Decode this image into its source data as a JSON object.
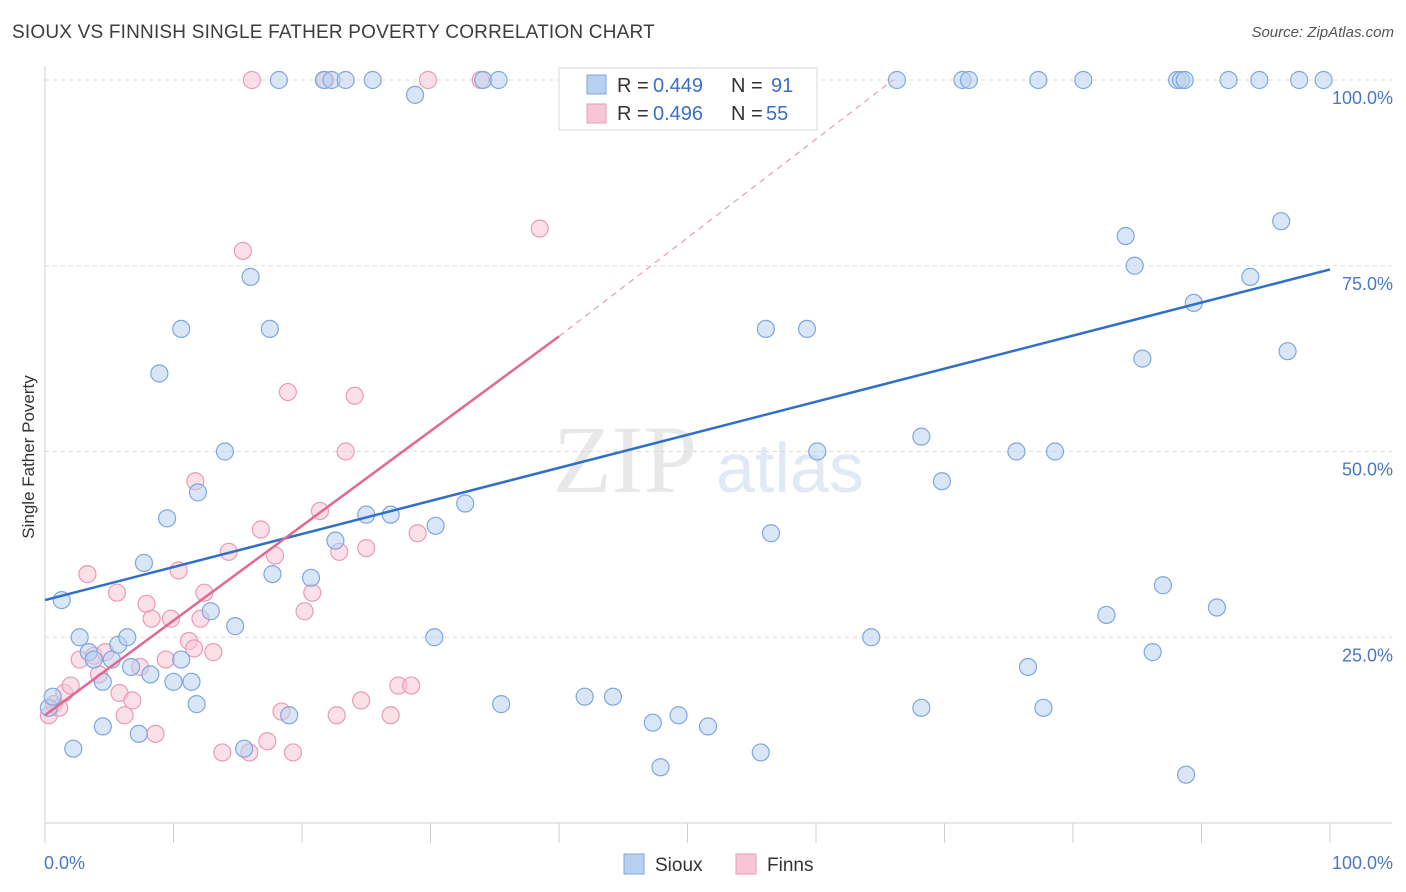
{
  "header": {
    "title": "SIOUX VS FINNISH SINGLE FATHER POVERTY CORRELATION CHART",
    "source": "Source: ZipAtlas.com"
  },
  "watermark": {
    "zip": "ZIP",
    "atlas": "atlas"
  },
  "legend": {
    "sioux": {
      "r_label": "R =",
      "r_value": "0.449",
      "n_label": "N =",
      "n_value": "91"
    },
    "finns": {
      "r_label": "R =",
      "r_value": "0.496",
      "n_label": "N =",
      "n_value": "55"
    }
  },
  "bottom_legend": {
    "sioux": "Sioux",
    "finns": "Finns"
  },
  "colors": {
    "sioux_fill": "#b9d1f0",
    "sioux_stroke": "#7fa7de",
    "sioux_line": "#2f6fc7",
    "finns_fill": "#f7c6d6",
    "finns_stroke": "#e99bb6",
    "finns_line": "#e2688f",
    "grid": "#dcdcdc",
    "axis_text": "#4a78c2"
  },
  "chart_data": {
    "type": "scatter",
    "title": "SIOUX VS FINNISH SINGLE FATHER POVERTY CORRELATION CHART",
    "xlabel": "",
    "ylabel": "Single Father Poverty",
    "xlim": [
      0,
      100
    ],
    "ylim": [
      0,
      100
    ],
    "x_tick_labels": [
      "0.0%",
      "100.0%"
    ],
    "y_tick_labels": [
      "25.0%",
      "50.0%",
      "75.0%",
      "100.0%"
    ],
    "y_ticks": [
      25,
      50,
      75,
      100
    ],
    "grid": true,
    "legend_position": "top-center",
    "series": [
      {
        "name": "Sioux",
        "R": 0.449,
        "N": 91,
        "trend": {
          "x0": 0,
          "y0": 30,
          "x1": 100,
          "y1": 74.5
        },
        "points": [
          [
            0.3,
            15.5
          ],
          [
            0.6,
            17
          ],
          [
            1.3,
            30
          ],
          [
            2.2,
            10
          ],
          [
            2.7,
            25
          ],
          [
            3.4,
            23
          ],
          [
            3.8,
            22
          ],
          [
            4.5,
            13
          ],
          [
            4.5,
            19
          ],
          [
            5.2,
            22
          ],
          [
            5.7,
            24
          ],
          [
            6.4,
            25
          ],
          [
            6.7,
            21
          ],
          [
            7.3,
            12
          ],
          [
            7.7,
            35
          ],
          [
            8.2,
            20
          ],
          [
            8.9,
            60.5
          ],
          [
            9.5,
            41
          ],
          [
            10,
            19
          ],
          [
            10.6,
            66.5
          ],
          [
            10.6,
            22
          ],
          [
            11.4,
            19
          ],
          [
            11.8,
            16
          ],
          [
            11.9,
            44.5
          ],
          [
            12.9,
            28.5
          ],
          [
            14.0,
            50
          ],
          [
            14.8,
            26.5
          ],
          [
            15.5,
            10
          ],
          [
            16.0,
            73.5
          ],
          [
            17.5,
            66.5
          ],
          [
            17.7,
            33.5
          ],
          [
            18.2,
            100
          ],
          [
            19,
            14.5
          ],
          [
            20.7,
            33
          ],
          [
            21.7,
            100
          ],
          [
            22.3,
            100
          ],
          [
            22.6,
            38
          ],
          [
            23.4,
            100
          ],
          [
            25,
            41.5
          ],
          [
            25.5,
            100
          ],
          [
            26.9,
            41.5
          ],
          [
            28.8,
            98
          ],
          [
            30.4,
            40
          ],
          [
            32.7,
            43
          ],
          [
            34.1,
            100
          ],
          [
            35.3,
            100
          ],
          [
            35.5,
            16
          ],
          [
            42,
            17
          ],
          [
            44.2,
            17
          ],
          [
            47.3,
            13.5
          ],
          [
            47.9,
            7.5
          ],
          [
            49.3,
            14.5
          ],
          [
            56.1,
            66.5
          ],
          [
            55.7,
            9.5
          ],
          [
            56.5,
            39
          ],
          [
            59.3,
            66.5
          ],
          [
            60.1,
            50
          ],
          [
            64.3,
            25
          ],
          [
            66.3,
            100
          ],
          [
            68.2,
            15.5
          ],
          [
            68.2,
            52
          ],
          [
            69.8,
            46
          ],
          [
            71.4,
            100
          ],
          [
            71.9,
            100
          ],
          [
            75.6,
            50
          ],
          [
            76.5,
            21
          ],
          [
            77.3,
            100
          ],
          [
            77.7,
            15.5
          ],
          [
            78.6,
            50
          ],
          [
            80.8,
            100
          ],
          [
            82.6,
            28
          ],
          [
            84.1,
            79
          ],
          [
            84.8,
            75
          ],
          [
            85.4,
            62.5
          ],
          [
            86.2,
            23
          ],
          [
            87.0,
            32
          ],
          [
            88.1,
            100
          ],
          [
            88.4,
            100
          ],
          [
            88.7,
            100
          ],
          [
            88.8,
            6.5
          ],
          [
            89.4,
            70
          ],
          [
            91.2,
            29
          ],
          [
            92.1,
            100
          ],
          [
            93.8,
            73.5
          ],
          [
            94.5,
            100
          ],
          [
            96.2,
            81
          ],
          [
            96.7,
            63.5
          ],
          [
            97.6,
            100
          ],
          [
            99.5,
            100
          ],
          [
            30.3,
            25
          ],
          [
            51.6,
            13
          ]
        ]
      },
      {
        "name": "Finns",
        "R": 0.496,
        "N": 55,
        "trend": {
          "x0": 0,
          "y0": 14.5,
          "x1": 40,
          "y1": 65.5
        },
        "trend_extension": {
          "x0": 40,
          "y0": 65.5,
          "x1": 66,
          "y1": 100
        },
        "points": [
          [
            0.3,
            14.5
          ],
          [
            0.7,
            16
          ],
          [
            1.1,
            15.5
          ],
          [
            1.5,
            17.5
          ],
          [
            2.0,
            18.5
          ],
          [
            2.7,
            22
          ],
          [
            3.3,
            33.5
          ],
          [
            3.8,
            22.5
          ],
          [
            4.2,
            20
          ],
          [
            4.7,
            23
          ],
          [
            5.6,
            31
          ],
          [
            5.8,
            17.5
          ],
          [
            6.2,
            14.5
          ],
          [
            6.8,
            16.5
          ],
          [
            7.4,
            21
          ],
          [
            7.9,
            29.5
          ],
          [
            8.3,
            27.5
          ],
          [
            8.6,
            12
          ],
          [
            9.4,
            22
          ],
          [
            9.8,
            27.5
          ],
          [
            10.4,
            34
          ],
          [
            11.2,
            24.5
          ],
          [
            11.6,
            23.5
          ],
          [
            12.1,
            27.5
          ],
          [
            12.4,
            31
          ],
          [
            13.1,
            23
          ],
          [
            13.8,
            9.5
          ],
          [
            14.3,
            36.5
          ],
          [
            15.4,
            77
          ],
          [
            15.9,
            9.5
          ],
          [
            16.8,
            39.5
          ],
          [
            17.3,
            11
          ],
          [
            17.9,
            36
          ],
          [
            18.4,
            15
          ],
          [
            18.9,
            58
          ],
          [
            19.3,
            9.5
          ],
          [
            20.2,
            28.5
          ],
          [
            20.8,
            31
          ],
          [
            21.4,
            42
          ],
          [
            22.7,
            14.5
          ],
          [
            22.9,
            36.5
          ],
          [
            23.4,
            50
          ],
          [
            24.1,
            57.5
          ],
          [
            24.6,
            16.5
          ],
          [
            25.0,
            37
          ],
          [
            26.9,
            14.5
          ],
          [
            27.5,
            18.5
          ],
          [
            28.5,
            18.5
          ],
          [
            29.0,
            39
          ],
          [
            11.7,
            46
          ],
          [
            16.1,
            100
          ],
          [
            21.8,
            100
          ],
          [
            29.8,
            100
          ],
          [
            33.9,
            100
          ],
          [
            38.5,
            80
          ]
        ]
      }
    ]
  }
}
